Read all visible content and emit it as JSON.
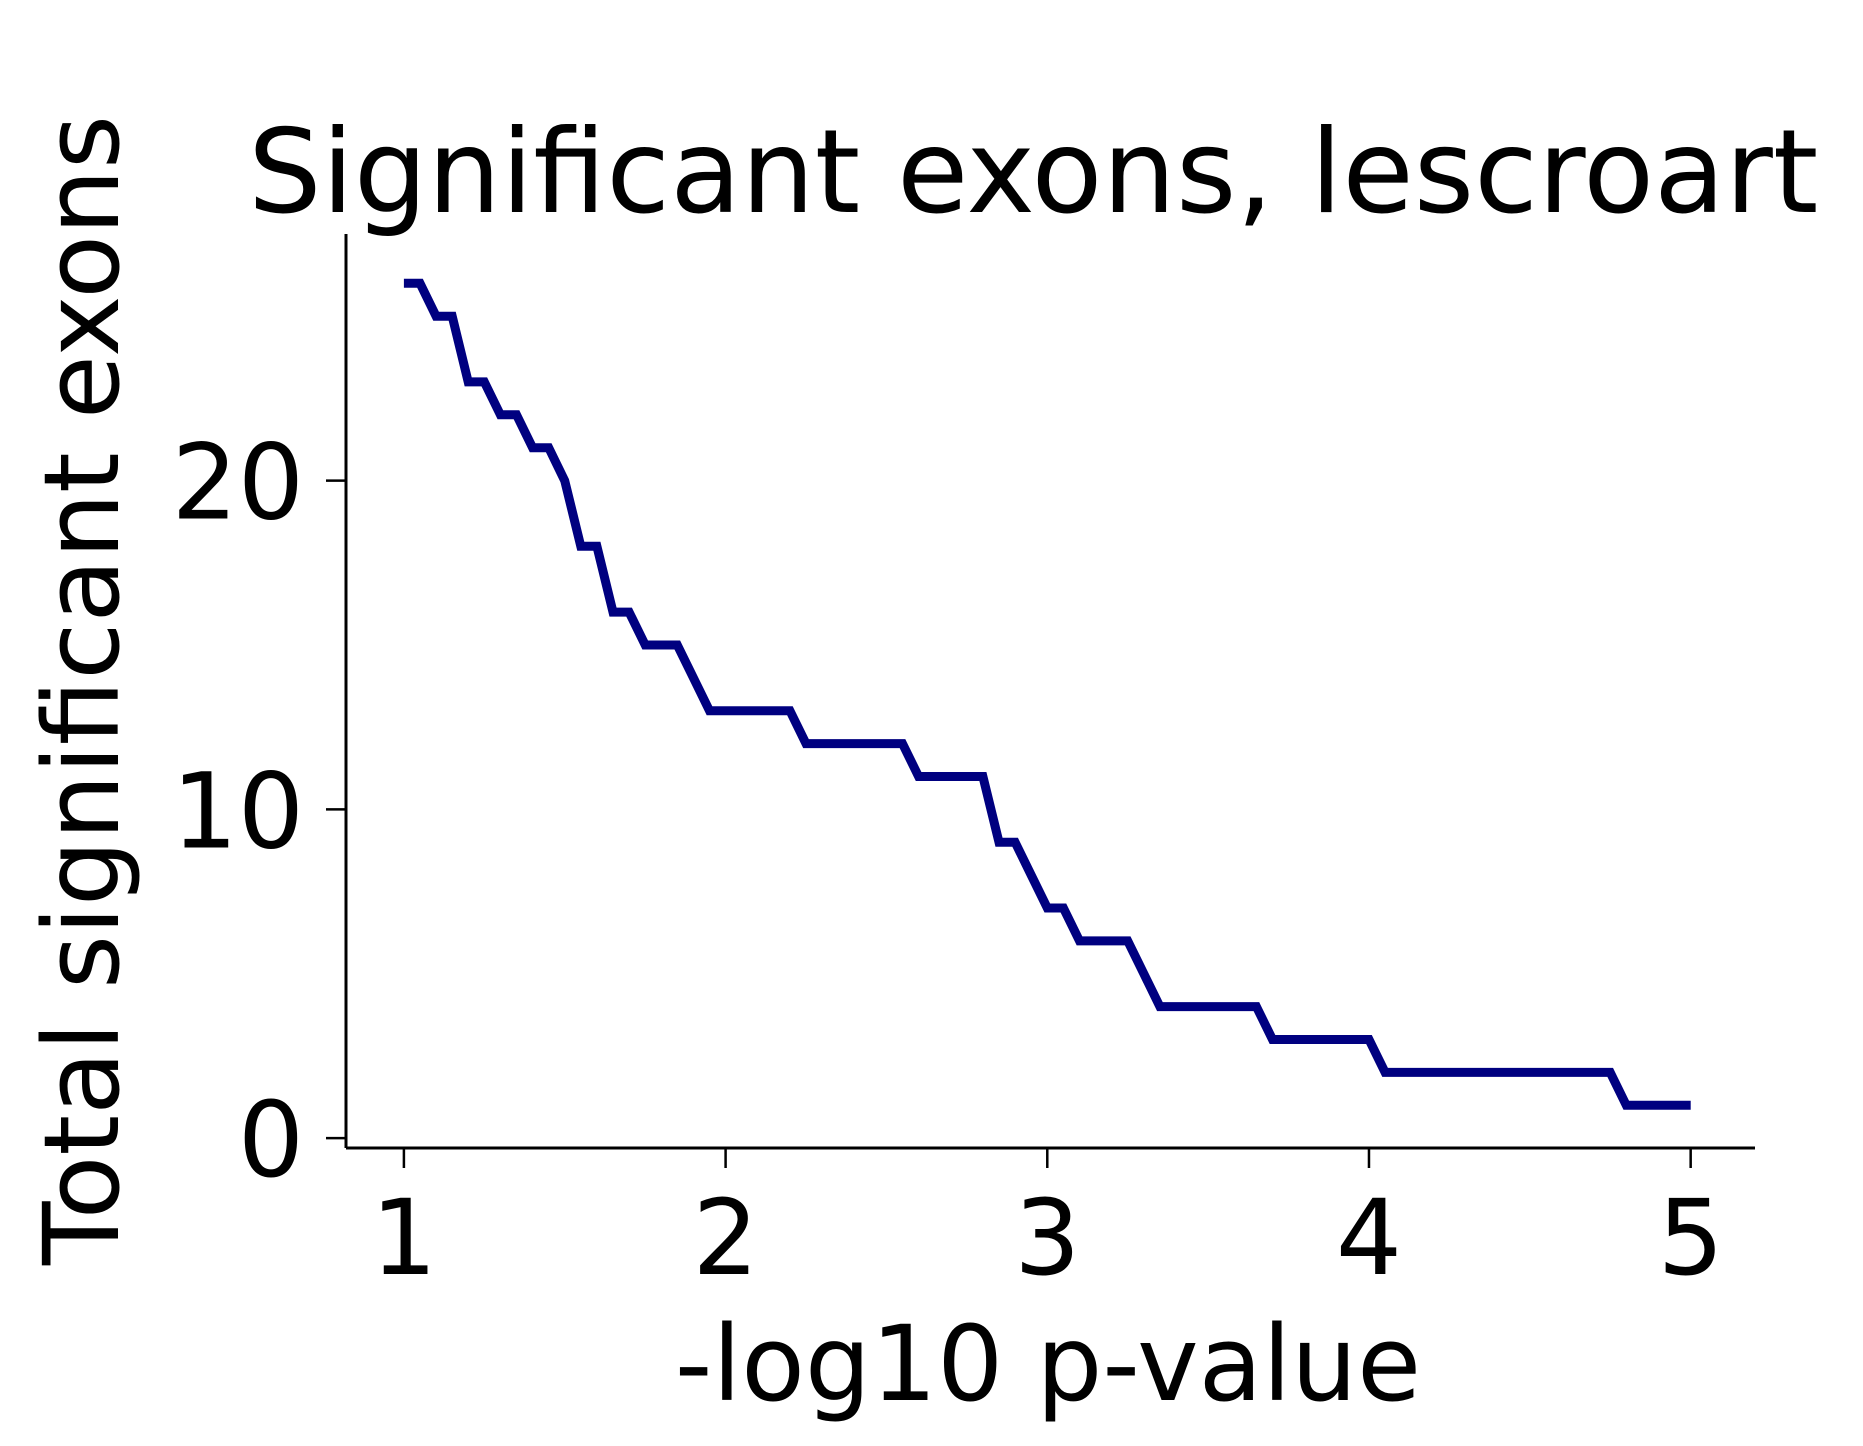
{
  "chart_data": {
    "type": "line",
    "title": "Significant exons, lescroart",
    "xlabel": "-log10 p-value",
    "ylabel": "Total significant exons",
    "xlim": [
      0.82,
      5.2
    ],
    "ylim": [
      -0.3,
      27.5
    ],
    "xticks": [
      "1",
      "2",
      "3",
      "4",
      "5"
    ],
    "yticks": [
      "0",
      "10",
      "20"
    ],
    "grid": false,
    "legend": "none",
    "line_color": "#000080",
    "series": [
      {
        "x": [
          1.0,
          1.05,
          1.1,
          1.15,
          1.2,
          1.25,
          1.3,
          1.35,
          1.4,
          1.45,
          1.5,
          1.55,
          1.6,
          1.65,
          1.7,
          1.75,
          1.8,
          1.85,
          1.9,
          1.95,
          2.0,
          2.05,
          2.1,
          2.15,
          2.2,
          2.25,
          2.3,
          2.35,
          2.4,
          2.45,
          2.5,
          2.55,
          2.6,
          2.65,
          2.7,
          2.75,
          2.8,
          2.85,
          2.9,
          2.95,
          3.0,
          3.05,
          3.1,
          3.15,
          3.2,
          3.25,
          3.3,
          3.35,
          3.4,
          3.45,
          3.5,
          3.55,
          3.6,
          3.65,
          3.7,
          3.75,
          3.8,
          3.85,
          3.9,
          3.95,
          4.0,
          4.05,
          4.1,
          4.15,
          4.2,
          4.25,
          4.3,
          4.35,
          4.4,
          4.45,
          4.5,
          4.55,
          4.6,
          4.65,
          4.7,
          4.75,
          4.8,
          4.85,
          4.9,
          4.95,
          5.0
        ],
        "y": [
          26,
          26,
          25,
          25,
          23,
          23,
          22,
          22,
          21,
          21,
          20,
          18,
          18,
          16,
          16,
          15,
          15,
          15,
          14,
          13,
          13,
          13,
          13,
          13,
          13,
          12,
          12,
          12,
          12,
          12,
          12,
          12,
          11,
          11,
          11,
          11,
          11,
          9,
          9,
          8,
          7,
          7,
          6,
          6,
          6,
          6,
          5,
          4,
          4,
          4,
          4,
          4,
          4,
          4,
          3,
          3,
          3,
          3,
          3,
          3,
          3,
          2,
          2,
          2,
          2,
          2,
          2,
          2,
          2,
          2,
          2,
          2,
          2,
          2,
          2,
          2,
          1,
          1,
          1,
          1,
          1
        ]
      }
    ]
  }
}
